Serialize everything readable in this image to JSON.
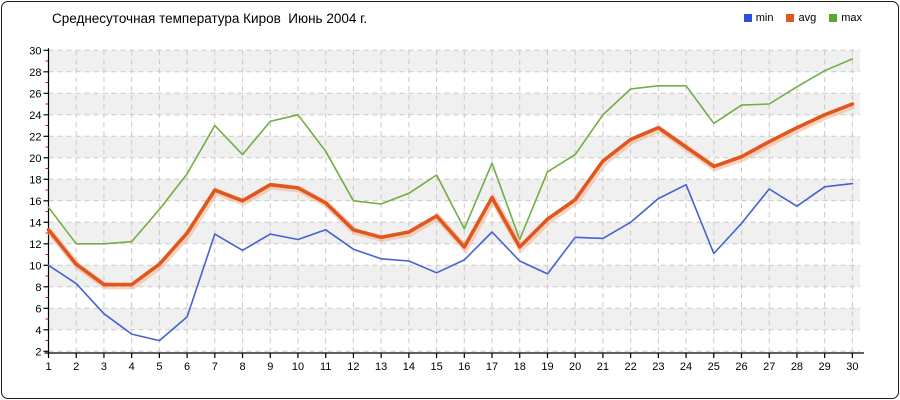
{
  "title": "Среднесуточная температура Киров  Июнь 2004 г.",
  "legend": [
    {
      "label": "min",
      "color": "#2b50dd"
    },
    {
      "label": "avg",
      "color": "#e2571c"
    },
    {
      "label": "max",
      "color": "#52aa2e"
    }
  ],
  "chart_data": {
    "type": "line",
    "title": "Среднесуточная температура Киров  Июнь 2004 г.",
    "xlabel": "",
    "ylabel": "",
    "x": [
      1,
      2,
      3,
      4,
      5,
      6,
      7,
      8,
      9,
      10,
      11,
      12,
      13,
      14,
      15,
      16,
      17,
      18,
      19,
      20,
      21,
      22,
      23,
      24,
      25,
      26,
      27,
      28,
      29,
      30
    ],
    "ylim": [
      2,
      30
    ],
    "ytick_step": 2,
    "grid": "dashed",
    "legend_position": "top-right",
    "series": [
      {
        "name": "max",
        "color": "#72ae43",
        "width": 1.6,
        "values": [
          15.4,
          12.0,
          12.0,
          12.2,
          15.2,
          18.5,
          23.0,
          20.3,
          23.4,
          24.0,
          20.6,
          16.0,
          15.7,
          16.7,
          18.4,
          13.4,
          19.5,
          12.4,
          18.7,
          20.3,
          24.0,
          26.4,
          26.7,
          26.7,
          23.2,
          24.9,
          25.0,
          26.6,
          28.1,
          29.2
        ]
      },
      {
        "name": "min",
        "color": "#4463d0",
        "width": 1.6,
        "values": [
          10.0,
          8.3,
          5.5,
          3.6,
          3.0,
          5.2,
          12.9,
          11.4,
          12.9,
          12.4,
          13.3,
          11.5,
          10.6,
          10.4,
          9.3,
          10.5,
          13.1,
          10.4,
          9.2,
          12.6,
          12.5,
          14.0,
          16.2,
          17.5,
          11.1,
          13.9,
          17.1,
          15.5,
          17.3,
          17.6
        ]
      },
      {
        "name": "avg",
        "color": "#e0561e",
        "width": 3.6,
        "halo": "#f3b28c",
        "values": [
          13.3,
          10.1,
          8.2,
          8.2,
          10.1,
          13.0,
          17.0,
          16.0,
          17.5,
          17.2,
          15.8,
          13.3,
          12.6,
          13.1,
          14.6,
          11.7,
          16.3,
          11.7,
          14.3,
          16.1,
          19.7,
          21.7,
          22.8,
          21.0,
          19.2,
          20.1,
          21.5,
          22.8,
          24.0,
          25.0
        ]
      }
    ],
    "style": {
      "band_colors": [
        "#f0f0f0",
        "#ffffff"
      ],
      "gridline_color": "#c9c9c9",
      "axis_color": "#000000",
      "minor_tick_color": "#cc1111",
      "tick_label_color": "#000000"
    }
  }
}
